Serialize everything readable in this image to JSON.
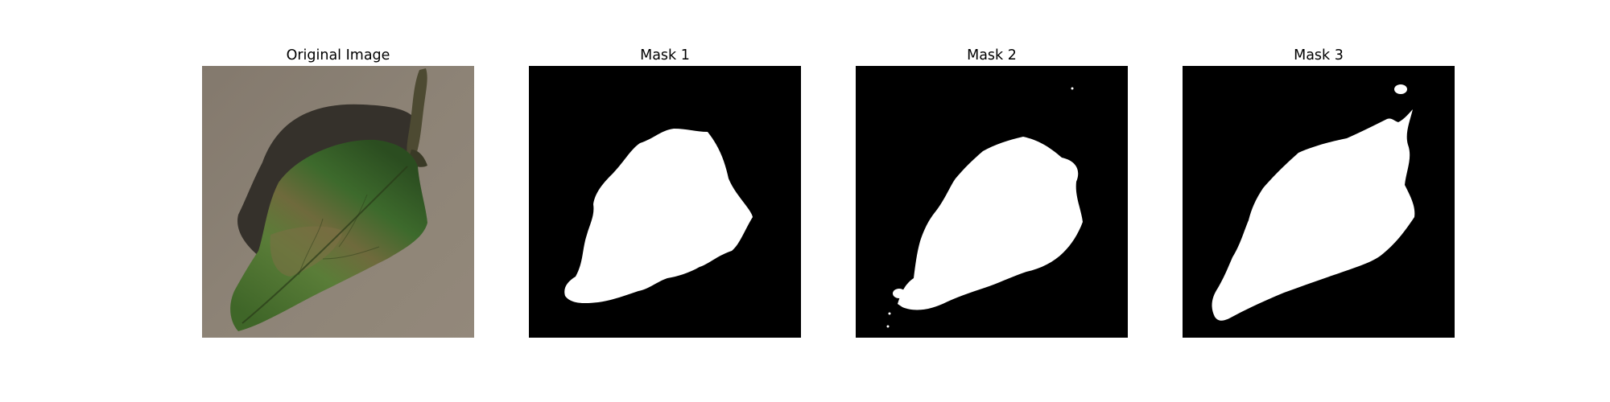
{
  "panels": [
    {
      "title": "Original Image"
    },
    {
      "title": "Mask 1"
    },
    {
      "title": "Mask 2"
    },
    {
      "title": "Mask 3"
    }
  ],
  "colors": {
    "background": "#ffffff",
    "mask_background": "#000000",
    "mask_foreground": "#ffffff",
    "surface": "#8f8577",
    "leaf_dark": "#2e4d1f",
    "leaf_mid": "#4e7d33",
    "shadow": "#2e2a25"
  },
  "icons": {
    "original": "leaf-photo",
    "masks": "binary-segmentation-mask"
  }
}
